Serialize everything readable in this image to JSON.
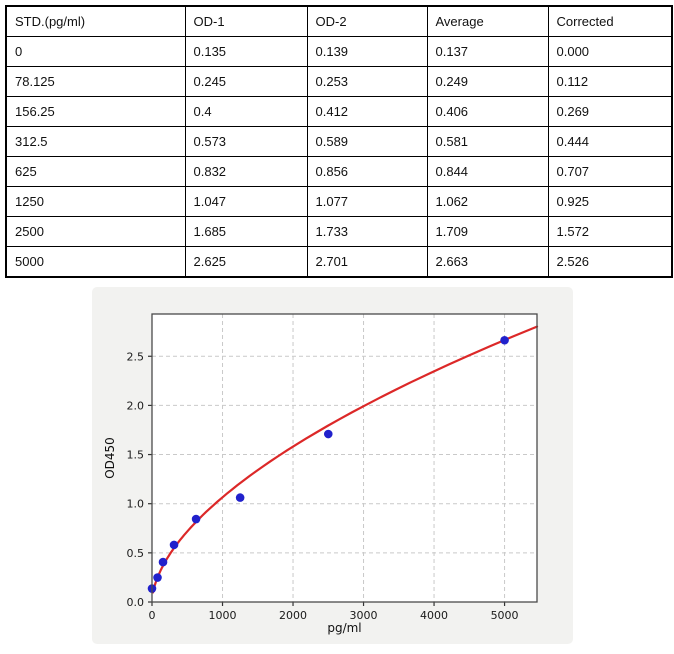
{
  "table": {
    "headers": [
      "STD.(pg/ml)",
      "OD-1",
      "OD-2",
      "Average",
      "Corrected"
    ],
    "rows": [
      [
        "0",
        "0.135",
        "0.139",
        "0.137",
        "0.000"
      ],
      [
        "78.125",
        "0.245",
        "0.253",
        "0.249",
        "0.112"
      ],
      [
        "156.25",
        "0.4",
        "0.412",
        "0.406",
        "0.269"
      ],
      [
        "312.5",
        "0.573",
        "0.589",
        "0.581",
        "0.444"
      ],
      [
        "625",
        "0.832",
        "0.856",
        "0.844",
        "0.707"
      ],
      [
        "1250",
        "1.047",
        "1.077",
        "1.062",
        "0.925"
      ],
      [
        "2500",
        "1.685",
        "1.733",
        "1.709",
        "1.572"
      ],
      [
        "5000",
        "2.625",
        "2.701",
        "2.663",
        "2.526"
      ]
    ]
  },
  "chart_data": {
    "type": "scatter",
    "title": "",
    "xlabel": "pg/ml",
    "ylabel": "OD450",
    "x": [
      0,
      78.125,
      156.25,
      312.5,
      625,
      1250,
      2500,
      5000
    ],
    "y": [
      0.137,
      0.249,
      0.406,
      0.581,
      0.844,
      1.062,
      1.709,
      2.663
    ],
    "fit_curve": {
      "type": "power",
      "a": 0.0208,
      "b": 0.5698,
      "x_start": 15,
      "x_end": 5460
    },
    "xlim": [
      0,
      5460
    ],
    "ylim": [
      0,
      2.93
    ],
    "xtick_values": [
      0,
      1000,
      2000,
      3000,
      4000,
      5000
    ],
    "xtick_labels": [
      "0",
      "1000",
      "2000",
      "3000",
      "4000",
      "5000"
    ],
    "ytick_values": [
      0,
      0.5,
      1.0,
      1.5,
      2.0,
      2.5
    ],
    "ytick_labels": [
      "0.0",
      "0.5",
      "1.0",
      "1.5",
      "2.0",
      "2.5"
    ],
    "grid": true,
    "legend": "none",
    "colors": {
      "panel_bg": "#f2f2f0",
      "plot_bg": "#ffffff",
      "grid": "#c9c9c9",
      "spine": "#4a4a4a",
      "tick": "#333333",
      "point": "#2121cc",
      "curve": "#dc2828"
    }
  }
}
